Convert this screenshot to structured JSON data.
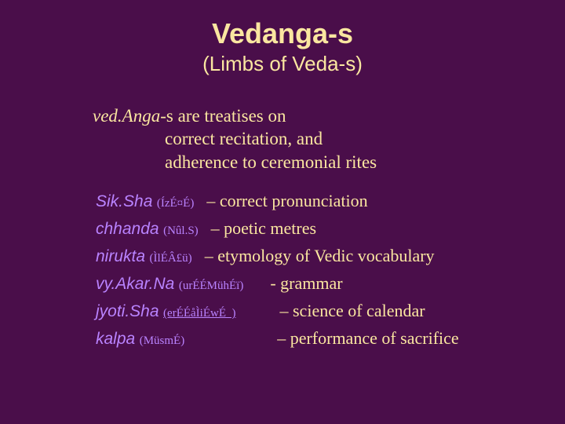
{
  "colors": {
    "background": "#4a0e4a",
    "heading": "#fae6a0",
    "body": "#fae6a0",
    "term": "#b983ff"
  },
  "title": "Vedanga-s",
  "subtitle": "(Limbs of Veda-s)",
  "intro": {
    "line1_italic": "ved.Anga",
    "line1_rest": "-s are treatises on",
    "line2": "correct recitation, and",
    "line3": "adherence to ceremonial rites"
  },
  "items": [
    {
      "term": "Sik.Sha",
      "script": "(ÍzÉ¤É)",
      "desc": "– correct pronunciation"
    },
    {
      "term": "chhanda",
      "script": "(Nûl.S)",
      "desc": "– poetic metres"
    },
    {
      "term": "nirukta",
      "script": "(ÌlÉÂ£ü)",
      "desc": "– etymology of Vedic vocabulary"
    },
    {
      "term": "vy.Akar.Na",
      "script": "(urÉÉMühÉï)",
      "desc": "- grammar"
    },
    {
      "term": "jyoti.Sha",
      "script": "(erÉÉåÌiÉwÉ  )",
      "desc": "– science of calendar"
    },
    {
      "term": "kalpa",
      "script": "(MüsmÉ)",
      "desc": "– performance of sacrifice"
    }
  ]
}
